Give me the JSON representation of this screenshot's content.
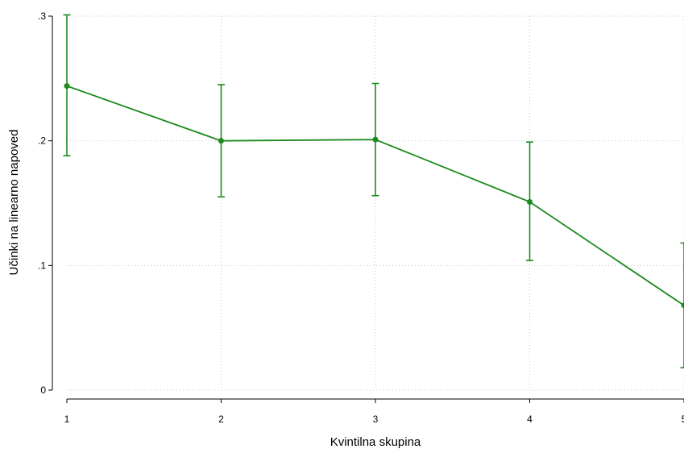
{
  "chart_data": {
    "type": "line",
    "xlabel": "Kvintilna skupina",
    "ylabel": "Učinki na linearno napoved",
    "x": [
      1,
      2,
      3,
      4,
      5
    ],
    "x_tick_labels": [
      "1",
      "2",
      "3",
      "4",
      "5"
    ],
    "y_ticks": [
      0,
      0.1,
      0.2,
      0.3
    ],
    "y_tick_labels": [
      "0",
      ".1",
      ".2",
      ".3"
    ],
    "xlim": [
      1,
      5
    ],
    "ylim": [
      0,
      0.3
    ],
    "grid": "horizontal and vertical dotted",
    "series": [
      {
        "color": "#1e8a1e",
        "points": [
          {
            "x": 1,
            "y": 0.244,
            "ci_low": 0.188,
            "ci_high": 0.301
          },
          {
            "x": 2,
            "y": 0.2,
            "ci_low": 0.155,
            "ci_high": 0.245
          },
          {
            "x": 3,
            "y": 0.201,
            "ci_low": 0.156,
            "ci_high": 0.246
          },
          {
            "x": 4,
            "y": 0.151,
            "ci_low": 0.104,
            "ci_high": 0.199
          },
          {
            "x": 5,
            "y": 0.068,
            "ci_low": 0.018,
            "ci_high": 0.118
          }
        ]
      }
    ]
  }
}
